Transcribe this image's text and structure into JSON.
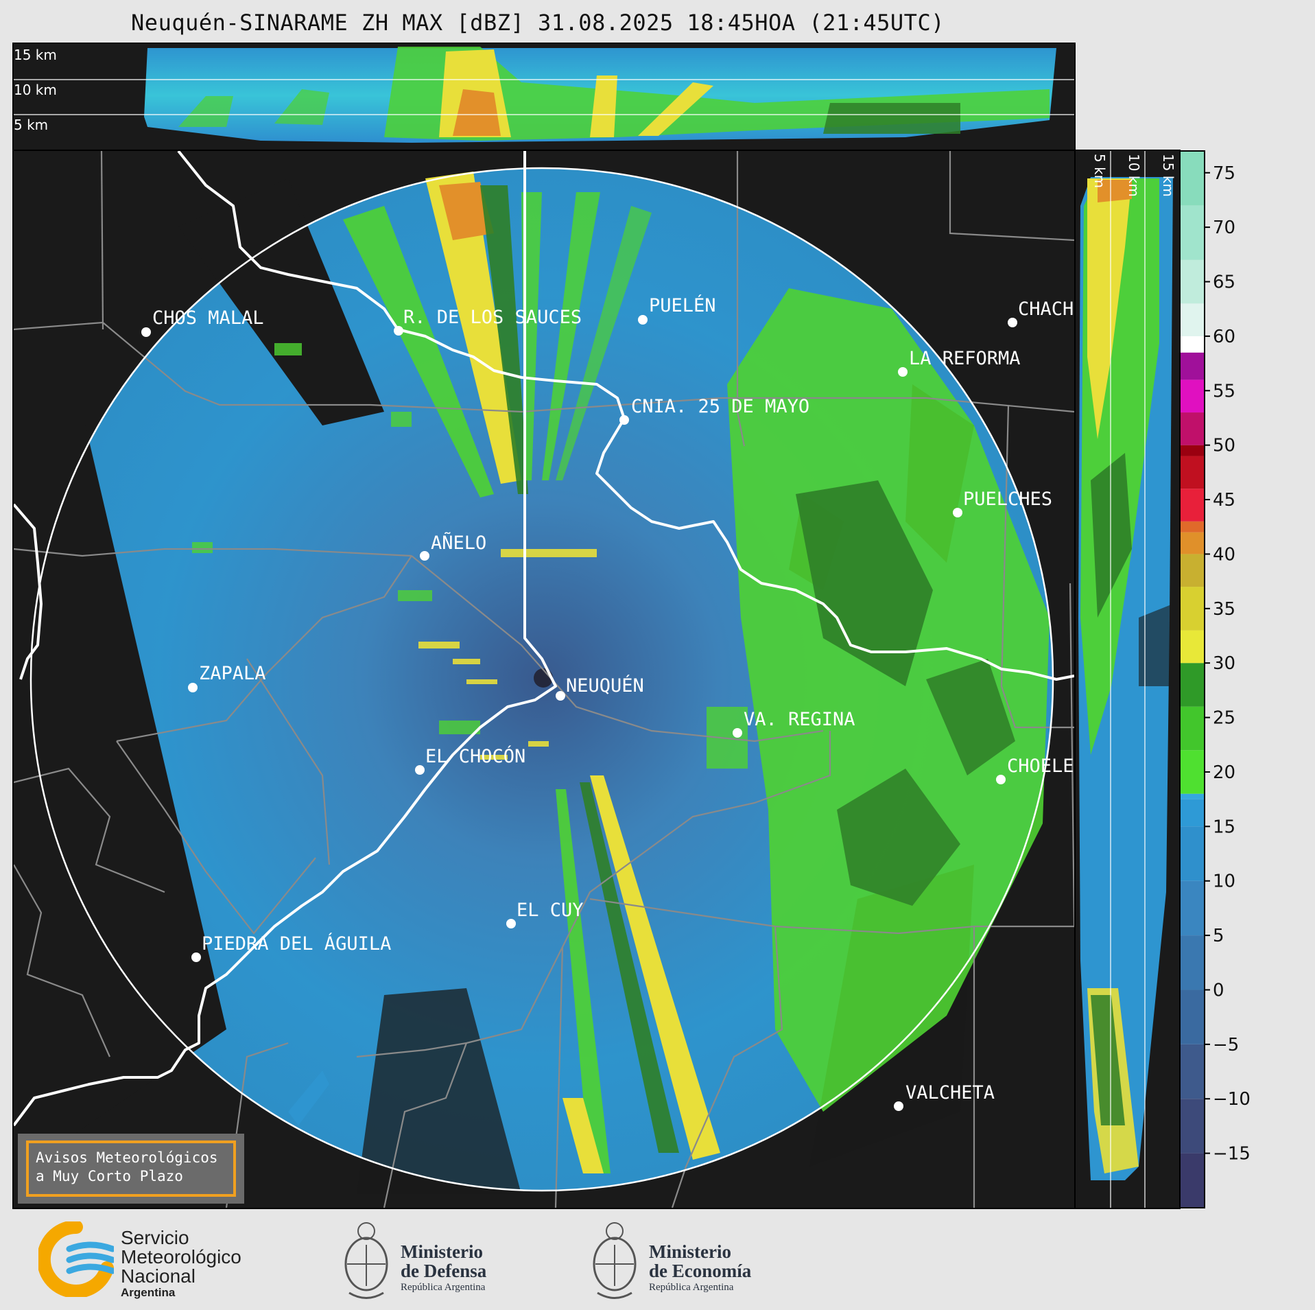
{
  "title": "Neuquén-SINARAME ZH MAX [dBZ] 31.08.2025 18:45HOA (21:45UTC)",
  "top_panel": {
    "altitudes": [
      "15 km",
      "10 km",
      "5 km"
    ]
  },
  "side_panel": {
    "altitudes": [
      "5 km",
      "10 km",
      "15 km"
    ]
  },
  "colorbar": {
    "ticks": [
      "75",
      "70",
      "65",
      "60",
      "55",
      "50",
      "45",
      "40",
      "35",
      "30",
      "25",
      "20",
      "15",
      "10",
      "5",
      "0",
      "−5",
      "−10",
      "−15"
    ]
  },
  "cities": [
    {
      "name": "CHOS MALAL"
    },
    {
      "name": "R. DE LOS SAUCES"
    },
    {
      "name": "PUELÉN"
    },
    {
      "name": "CHACH"
    },
    {
      "name": "LA REFORMA"
    },
    {
      "name": "CNIA. 25 DE MAYO"
    },
    {
      "name": "PUELCHES"
    },
    {
      "name": "AÑELO"
    },
    {
      "name": "ZAPALA"
    },
    {
      "name": "NEUQUÉN"
    },
    {
      "name": "VA. REGINA"
    },
    {
      "name": "EL CHOCÓN"
    },
    {
      "name": "CHOELE"
    },
    {
      "name": "EL CUY"
    },
    {
      "name": "PIEDRA DEL ÁGUILA"
    },
    {
      "name": "VALCHETA"
    }
  ],
  "notice": {
    "line1": "Avisos Meteorológicos",
    "line2": "a Muy Corto Plazo"
  },
  "logos": {
    "smn": {
      "line1": "Servicio",
      "line2": "Meteorológico",
      "line3": "Nacional",
      "line4": "Argentina"
    },
    "defensa": {
      "line1": "Ministerio",
      "line2": "de Defensa",
      "line3": "República Argentina"
    },
    "economia": {
      "line1": "Ministerio",
      "line2": "de Economía",
      "line3": "República Argentina"
    }
  }
}
